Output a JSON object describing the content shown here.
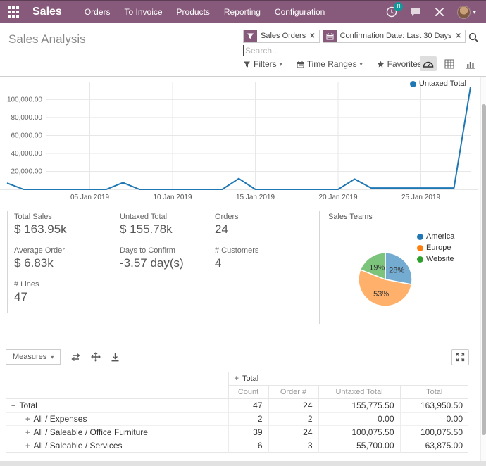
{
  "nav": {
    "brand": "Sales",
    "menu": [
      "Orders",
      "To Invoice",
      "Products",
      "Reporting",
      "Configuration"
    ],
    "activity_badge": "8"
  },
  "control_panel": {
    "title": "Sales Analysis",
    "facets": [
      {
        "icon": "filter-icon",
        "label": "Sales Orders",
        "remove": "x"
      },
      {
        "icon": "calendar-icon",
        "label": "Confirmation Date: Last 30 Days",
        "remove": "x"
      }
    ],
    "search_placeholder": "Search...",
    "buttons": [
      {
        "icon": "filter-icon",
        "label": "Filters"
      },
      {
        "icon": "calendar-icon",
        "label": "Time Ranges"
      },
      {
        "icon": "star-icon",
        "label": "Favorites"
      }
    ],
    "view_switcher": [
      "dashboard",
      "pivot",
      "graph"
    ]
  },
  "chart_data": [
    {
      "type": "line",
      "title": "",
      "legend": "Untaxed Total",
      "line_color": "#1f77b4",
      "x": [
        "31 Dec 2018",
        "01 Jan 2019",
        "02 Jan 2019",
        "03 Jan 2019",
        "04 Jan 2019",
        "05 Jan 2019",
        "06 Jan 2019",
        "07 Jan 2019",
        "08 Jan 2019",
        "09 Jan 2019",
        "10 Jan 2019",
        "11 Jan 2019",
        "12 Jan 2019",
        "13 Jan 2019",
        "14 Jan 2019",
        "15 Jan 2019",
        "16 Jan 2019",
        "17 Jan 2019",
        "18 Jan 2019",
        "19 Jan 2019",
        "20 Jan 2019",
        "21 Jan 2019",
        "22 Jan 2019",
        "23 Jan 2019",
        "24 Jan 2019",
        "25 Jan 2019",
        "26 Jan 2019",
        "27 Jan 2019",
        "28 Jan 2019"
      ],
      "values": [
        7000,
        0,
        0,
        0,
        0,
        0,
        0,
        7500,
        0,
        0,
        0,
        0,
        0,
        0,
        12000,
        0,
        0,
        0,
        0,
        0,
        0,
        11500,
        1500,
        1500,
        1500,
        1500,
        1500,
        1500,
        114000
      ],
      "x_tick_indices": [
        5,
        10,
        15,
        20,
        25
      ],
      "x_tick_labels": [
        "05 Jan 2019",
        "10 Jan 2019",
        "15 Jan 2019",
        "20 Jan 2019",
        "25 Jan 2019"
      ],
      "y_ticks": [
        20000,
        40000,
        60000,
        80000,
        100000
      ],
      "y_tick_labels": [
        "20,000.00",
        "40,000.00",
        "60,000.00",
        "80,000.00",
        "100,000.00"
      ],
      "ylim": [
        0,
        116000
      ],
      "grid": true,
      "legend_position": "top-right"
    },
    {
      "type": "pie",
      "title": "Sales Teams",
      "labels": [
        "America",
        "Europe",
        "Website"
      ],
      "values": [
        28,
        53,
        19
      ],
      "slice_labels": [
        "28%",
        "53%",
        "19%"
      ],
      "colors": [
        "#1f77b4",
        "#ff7f0e",
        "#2ca02c"
      ],
      "legend_position": "right"
    }
  ],
  "kpis": [
    {
      "title": "Total Sales",
      "value": "$ 163.95k"
    },
    {
      "title": "Untaxed Total",
      "value": "$ 155.78k"
    },
    {
      "title": "Orders",
      "value": "24"
    },
    {
      "title": "Average Order",
      "value": "$ 6.83k"
    },
    {
      "title": "Days to Confirm",
      "value": "-3.57 day(s)"
    },
    {
      "title": "# Customers",
      "value": "4"
    },
    {
      "title": "# Lines",
      "value": "47"
    }
  ],
  "pie_block_title": "Sales Teams",
  "pivot": {
    "measures_label": "Measures",
    "col_group_header": "Total",
    "columns": [
      "Count",
      "Order #",
      "Untaxed Total",
      "Total"
    ],
    "rows": [
      {
        "label": "Total",
        "expand": "minus",
        "indent": 0,
        "bold": true,
        "values": [
          "47",
          "24",
          "155,775.50",
          "163,950.50"
        ]
      },
      {
        "label": "All / Expenses",
        "expand": "plus",
        "indent": 1,
        "bold": false,
        "values": [
          "2",
          "2",
          "0.00",
          "0.00"
        ]
      },
      {
        "label": "All / Saleable / Office Furniture",
        "expand": "plus",
        "indent": 1,
        "bold": false,
        "values": [
          "39",
          "24",
          "100,075.50",
          "100,075.50"
        ]
      },
      {
        "label": "All / Saleable / Services",
        "expand": "plus",
        "indent": 1,
        "bold": false,
        "values": [
          "6",
          "3",
          "55,700.00",
          "63,875.00"
        ]
      }
    ]
  },
  "colors": {
    "nav_bg": "#875A7B",
    "badge": "#00A09D",
    "line": "#1f77b4",
    "grid": "#e5e5e5",
    "axis_label": "#666666"
  }
}
